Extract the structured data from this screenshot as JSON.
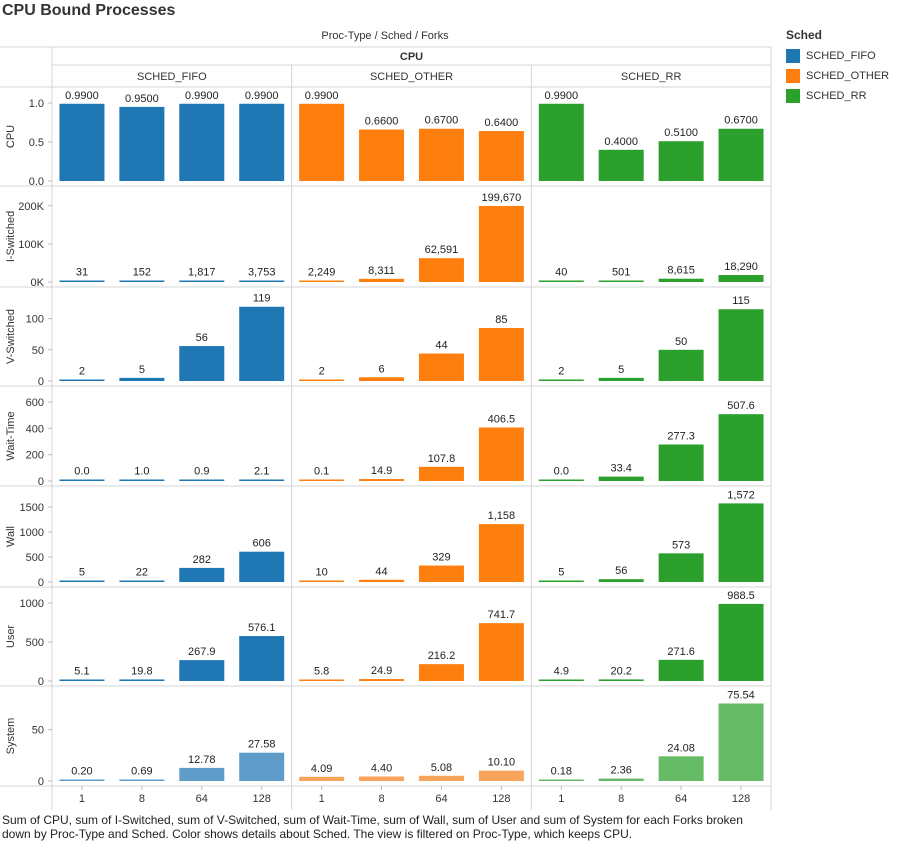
{
  "title": "CPU Bound Processes",
  "subtitle": "Proc-Type  /  Sched  /  Forks",
  "column_header": "CPU",
  "caption": "Sum of CPU, sum of I-Switched, sum of V-Switched, sum of Wait-Time, sum of Wall, sum of User and sum of System for each Forks broken down by Proc-Type and Sched.  Color shows details about Sched. The view is filtered on Proc-Type, which keeps CPU.",
  "legend": {
    "title": "Sched",
    "items": [
      {
        "label": "SCHED_FIFO",
        "color": "#1f77b4"
      },
      {
        "label": "SCHED_OTHER",
        "color": "#ff7f0e"
      },
      {
        "label": "SCHED_RR",
        "color": "#2ca02c"
      }
    ]
  },
  "chart_data": {
    "type": "bar",
    "groups": [
      "SCHED_FIFO",
      "SCHED_OTHER",
      "SCHED_RR"
    ],
    "categories": [
      "1",
      "8",
      "64",
      "128"
    ],
    "colors": {
      "SCHED_FIFO": "#1f77b4",
      "SCHED_OTHER": "#ff7f0e",
      "SCHED_RR": "#2ca02c"
    },
    "system_colors": {
      "SCHED_FIFO": "#5f9cc9",
      "SCHED_OTHER": "#f9a45d",
      "SCHED_RR": "#66bb66"
    },
    "grid": false,
    "rows": [
      {
        "measure": "CPU",
        "ylim": [
          0,
          1.0
        ],
        "ticks": [
          0,
          0.5,
          1.0
        ],
        "tick_labels": [
          "0.0",
          "0.5",
          "1.0"
        ],
        "values": {
          "SCHED_FIFO": [
            0.99,
            0.95,
            0.99,
            0.99
          ],
          "SCHED_OTHER": [
            0.99,
            0.66,
            0.67,
            0.64
          ],
          "SCHED_RR": [
            0.99,
            0.4,
            0.51,
            0.67
          ]
        },
        "labels": {
          "SCHED_FIFO": [
            "0.9900",
            "0.9500",
            "0.9900",
            "0.9900"
          ],
          "SCHED_OTHER": [
            "0.9900",
            "0.6600",
            "0.6700",
            "0.6400"
          ],
          "SCHED_RR": [
            "0.9900",
            "0.4000",
            "0.5100",
            "0.6700"
          ]
        }
      },
      {
        "measure": "I-Switched",
        "ylim": [
          0,
          210000
        ],
        "ticks": [
          0,
          100000,
          200000
        ],
        "tick_labels": [
          "0K",
          "100K",
          "200K"
        ],
        "values": {
          "SCHED_FIFO": [
            31,
            152,
            1817,
            3753
          ],
          "SCHED_OTHER": [
            2249,
            8311,
            62591,
            199670
          ],
          "SCHED_RR": [
            40,
            501,
            8615,
            18290
          ]
        },
        "labels": {
          "SCHED_FIFO": [
            "31",
            "152",
            "1,817",
            "3,753"
          ],
          "SCHED_OTHER": [
            "2,249",
            "8,311",
            "62,591",
            "199,670"
          ],
          "SCHED_RR": [
            "40",
            "501",
            "8,615",
            "18,290"
          ]
        }
      },
      {
        "measure": "V-Switched",
        "ylim": [
          0,
          125
        ],
        "ticks": [
          0,
          50,
          100
        ],
        "tick_labels": [
          "0",
          "50",
          "100"
        ],
        "values": {
          "SCHED_FIFO": [
            2,
            5,
            56,
            119
          ],
          "SCHED_OTHER": [
            2,
            6,
            44,
            85
          ],
          "SCHED_RR": [
            2,
            5,
            50,
            115
          ]
        },
        "labels": {
          "SCHED_FIFO": [
            "2",
            "5",
            "56",
            "119"
          ],
          "SCHED_OTHER": [
            "2",
            "6",
            "44",
            "85"
          ],
          "SCHED_RR": [
            "2",
            "5",
            "50",
            "115"
          ]
        }
      },
      {
        "measure": "Wait-Time",
        "ylim": [
          0,
          600
        ],
        "ticks": [
          0,
          200,
          400,
          600
        ],
        "tick_labels": [
          "0",
          "200",
          "400",
          "600"
        ],
        "values": {
          "SCHED_FIFO": [
            0.0,
            1.0,
            0.9,
            2.1
          ],
          "SCHED_OTHER": [
            0.1,
            14.9,
            107.8,
            406.5
          ],
          "SCHED_RR": [
            0.0,
            33.4,
            277.3,
            507.6
          ]
        },
        "labels": {
          "SCHED_FIFO": [
            "0.0",
            "1.0",
            "0.9",
            "2.1"
          ],
          "SCHED_OTHER": [
            "0.1",
            "14.9",
            "107.8",
            "406.5"
          ],
          "SCHED_RR": [
            "0.0",
            "33.4",
            "277.3",
            "507.6"
          ]
        }
      },
      {
        "measure": "Wall",
        "ylim": [
          0,
          1600
        ],
        "ticks": [
          0,
          500,
          1000,
          1500
        ],
        "tick_labels": [
          "0",
          "500",
          "1000",
          "1500"
        ],
        "values": {
          "SCHED_FIFO": [
            5,
            22,
            282,
            606
          ],
          "SCHED_OTHER": [
            10,
            44,
            329,
            1158
          ],
          "SCHED_RR": [
            5,
            56,
            573,
            1572
          ]
        },
        "labels": {
          "SCHED_FIFO": [
            "5",
            "22",
            "282",
            "606"
          ],
          "SCHED_OTHER": [
            "10",
            "44",
            "329",
            "1,158"
          ],
          "SCHED_RR": [
            "5",
            "56",
            "573",
            "1,572"
          ]
        }
      },
      {
        "measure": "User",
        "ylim": [
          0,
          1000
        ],
        "ticks": [
          0,
          500,
          1000
        ],
        "tick_labels": [
          "0",
          "500",
          "1000"
        ],
        "values": {
          "SCHED_FIFO": [
            5.1,
            19.8,
            267.9,
            576.1
          ],
          "SCHED_OTHER": [
            5.8,
            24.9,
            216.2,
            741.7
          ],
          "SCHED_RR": [
            4.9,
            20.2,
            271.6,
            988.5
          ]
        },
        "labels": {
          "SCHED_FIFO": [
            "5.1",
            "19.8",
            "267.9",
            "576.1"
          ],
          "SCHED_OTHER": [
            "5.8",
            "24.9",
            "216.2",
            "741.7"
          ],
          "SCHED_RR": [
            "4.9",
            "20.2",
            "271.6",
            "988.5"
          ]
        }
      },
      {
        "measure": "System",
        "ylim": [
          0,
          77
        ],
        "ticks": [
          0,
          50
        ],
        "tick_labels": [
          "0",
          "50"
        ],
        "values": {
          "SCHED_FIFO": [
            0.2,
            0.69,
            12.78,
            27.58
          ],
          "SCHED_OTHER": [
            4.09,
            4.4,
            5.08,
            10.1
          ],
          "SCHED_RR": [
            0.18,
            2.36,
            24.08,
            75.54
          ]
        },
        "labels": {
          "SCHED_FIFO": [
            "0.20",
            "0.69",
            "12.78",
            "27.58"
          ],
          "SCHED_OTHER": [
            "4.09",
            "4.40",
            "5.08",
            "10.10"
          ],
          "SCHED_RR": [
            "0.18",
            "2.36",
            "24.08",
            "75.54"
          ]
        }
      }
    ]
  }
}
